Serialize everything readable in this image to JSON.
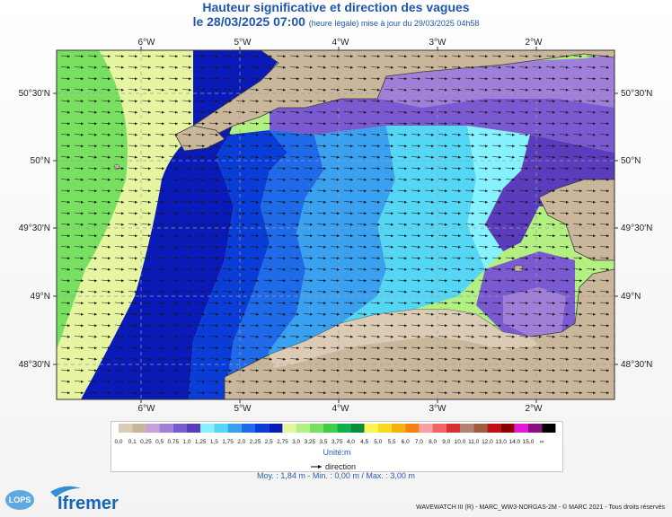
{
  "header": {
    "title": "Hauteur significative et direction des vagues",
    "date_label": "le 28/03/2025 07:00",
    "update_note": "(heure légale) mise à jour du 29/03/2025 04h58"
  },
  "map": {
    "lon_labels": [
      "6°W",
      "5°W",
      "4°W",
      "3°W",
      "2°W"
    ],
    "lat_labels": [
      "50°30'N",
      "50°N",
      "49°30'N",
      "49°N",
      "48°30'N"
    ],
    "colors": {
      "land": "#c9b69b",
      "coast": "#3a3a3a",
      "grid": "#9aa0aa"
    },
    "wave_direction": "east"
  },
  "legend": {
    "title": "Unité:m",
    "direction_label": "direction",
    "stops": [
      {
        "label": "0,0",
        "color": "#dccbb4"
      },
      {
        "label": "0,1",
        "color": "#c8b69c"
      },
      {
        "label": "0,25",
        "color": "#c7a0d8"
      },
      {
        "label": "0,5",
        "color": "#a07fd8"
      },
      {
        "label": "0,75",
        "color": "#7a5ad0"
      },
      {
        "label": "1,0",
        "color": "#5a3cbd"
      },
      {
        "label": "1,25",
        "color": "#86f2ff"
      },
      {
        "label": "1,5",
        "color": "#55d6f5"
      },
      {
        "label": "1,75",
        "color": "#3aa0f0"
      },
      {
        "label": "2,0",
        "color": "#1e6ae8"
      },
      {
        "label": "2,25",
        "color": "#0a3cd8"
      },
      {
        "label": "2,5",
        "color": "#0a1ab8"
      },
      {
        "label": "2,75",
        "color": "#e6f5a0"
      },
      {
        "label": "3,0",
        "color": "#b2f082"
      },
      {
        "label": "3,25",
        "color": "#77e060"
      },
      {
        "label": "3,5",
        "color": "#3fce46"
      },
      {
        "label": "3,75",
        "color": "#0eb04a"
      },
      {
        "label": "4,0",
        "color": "#0a8a3a"
      },
      {
        "label": "4,5",
        "color": "#f7f550"
      },
      {
        "label": "5,0",
        "color": "#f7da20"
      },
      {
        "label": "5,5",
        "color": "#f7b010"
      },
      {
        "label": "6,0",
        "color": "#f78010"
      },
      {
        "label": "7,0",
        "color": "#f8a0a0"
      },
      {
        "label": "8,0",
        "color": "#f06464"
      },
      {
        "label": "9,0",
        "color": "#d83030"
      },
      {
        "label": "10,0",
        "color": "#b48070"
      },
      {
        "label": "11,0",
        "color": "#a05a40"
      },
      {
        "label": "12,0",
        "color": "#c01010"
      },
      {
        "label": "13,0",
        "color": "#8a0000"
      },
      {
        "label": "14,0",
        "color": "#e01ad8"
      },
      {
        "label": "15,0",
        "color": "#8a1080"
      },
      {
        "label": "∞",
        "color": "#000000"
      }
    ]
  },
  "stats": {
    "text": "Moy. : 1,84 m   -   Min. : 0,00 m / Max. : 3,00 m"
  },
  "logos": {
    "lops": "LOPS",
    "ifremer": "Ifremer"
  },
  "credit": "WAVEWATCH III (R) - MARC_WW3-NORGAS-2M - © MARC 2021 - Tous droits réservés"
}
